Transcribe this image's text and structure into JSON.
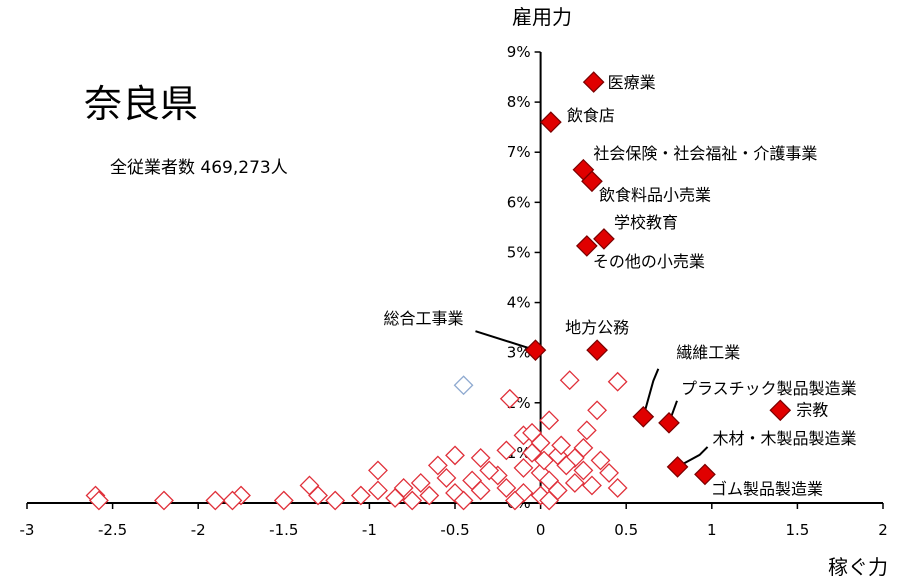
{
  "chart_data": {
    "type": "scatter",
    "title": "奈良県",
    "subtitle": "全従業者数 469,273人",
    "xlabel": "稼ぐ力",
    "ylabel": "雇用力",
    "xlim": [
      -3,
      2
    ],
    "ylim": [
      0,
      9
    ],
    "x_ticks": [
      "-3",
      "-2.5",
      "-2",
      "-1.5",
      "-1",
      "-0.5",
      "0",
      "0.5",
      "1",
      "1.5",
      "2"
    ],
    "x_tick_values": [
      -3,
      -2.5,
      -2,
      -1.5,
      -1,
      -0.5,
      0,
      0.5,
      1,
      1.5,
      2
    ],
    "y_ticks": [
      "0%",
      "1%",
      "2%",
      "3%",
      "4%",
      "5%",
      "6%",
      "7%",
      "8%",
      "9%"
    ],
    "y_tick_values": [
      0,
      1,
      2,
      3,
      4,
      5,
      6,
      7,
      8,
      9
    ],
    "grid": false,
    "colors": {
      "highlight": "#e00000",
      "highlight_edge": "#7a0000",
      "other_edge": "#e0303a",
      "other_alt_edge": "#8faad0"
    },
    "highlighted": [
      {
        "label": "医療業",
        "x": 0.31,
        "y": 8.4
      },
      {
        "label": "飲食店",
        "x": 0.06,
        "y": 7.6
      },
      {
        "label": "社会保険・社会福祉・介護事業",
        "x": 0.25,
        "y": 6.65
      },
      {
        "label": "飲食料品小売業",
        "x": 0.3,
        "y": 6.42
      },
      {
        "label": "学校教育",
        "x": 0.37,
        "y": 5.27
      },
      {
        "label": "その他の小売業",
        "x": 0.27,
        "y": 5.13
      },
      {
        "label": "総合工事業",
        "x": -0.03,
        "y": 3.05
      },
      {
        "label": "地方公務",
        "x": 0.33,
        "y": 3.05
      },
      {
        "label": "繊維工業",
        "x": 0.6,
        "y": 1.72
      },
      {
        "label": "プラスチック製品製造業",
        "x": 0.75,
        "y": 1.6
      },
      {
        "label": "宗教",
        "x": 1.4,
        "y": 1.85
      },
      {
        "label": "木材・木製品製造業",
        "x": 0.8,
        "y": 0.72
      },
      {
        "label": "ゴム製品製造業",
        "x": 0.96,
        "y": 0.57
      }
    ],
    "others": [
      {
        "x": -0.45,
        "y": 2.35,
        "alt": true
      },
      {
        "x": 0.17,
        "y": 2.45
      },
      {
        "x": 0.45,
        "y": 2.42
      },
      {
        "x": -0.18,
        "y": 2.08
      },
      {
        "x": 0.33,
        "y": 1.85
      },
      {
        "x": 0.05,
        "y": 1.65
      },
      {
        "x": 0.27,
        "y": 1.45
      },
      {
        "x": -0.1,
        "y": 1.35
      },
      {
        "x": 0.0,
        "y": 1.2
      },
      {
        "x": -0.2,
        "y": 1.05
      },
      {
        "x": -0.05,
        "y": 1.0
      },
      {
        "x": 0.1,
        "y": 0.95
      },
      {
        "x": 0.2,
        "y": 0.9
      },
      {
        "x": 0.35,
        "y": 0.85
      },
      {
        "x": -0.35,
        "y": 0.9
      },
      {
        "x": -0.5,
        "y": 0.95
      },
      {
        "x": -0.6,
        "y": 0.75
      },
      {
        "x": -0.1,
        "y": 0.7
      },
      {
        "x": 0.0,
        "y": 0.6
      },
      {
        "x": 0.15,
        "y": 0.75
      },
      {
        "x": 0.25,
        "y": 0.65
      },
      {
        "x": 0.4,
        "y": 0.6
      },
      {
        "x": 0.05,
        "y": 0.45
      },
      {
        "x": -0.25,
        "y": 0.55
      },
      {
        "x": -0.4,
        "y": 0.45
      },
      {
        "x": -0.55,
        "y": 0.5
      },
      {
        "x": -0.7,
        "y": 0.4
      },
      {
        "x": -0.8,
        "y": 0.3
      },
      {
        "x": -0.95,
        "y": 0.65
      },
      {
        "x": -0.95,
        "y": 0.25
      },
      {
        "x": -1.05,
        "y": 0.15
      },
      {
        "x": -0.85,
        "y": 0.1
      },
      {
        "x": -0.65,
        "y": 0.15
      },
      {
        "x": -0.5,
        "y": 0.2
      },
      {
        "x": -0.35,
        "y": 0.25
      },
      {
        "x": -0.2,
        "y": 0.3
      },
      {
        "x": -0.1,
        "y": 0.2
      },
      {
        "x": 0.0,
        "y": 0.15
      },
      {
        "x": 0.1,
        "y": 0.25
      },
      {
        "x": 0.2,
        "y": 0.4
      },
      {
        "x": 0.3,
        "y": 0.35
      },
      {
        "x": 0.45,
        "y": 0.3
      },
      {
        "x": 0.05,
        "y": 0.05
      },
      {
        "x": -0.15,
        "y": 0.05
      },
      {
        "x": -0.45,
        "y": 0.05
      },
      {
        "x": -0.75,
        "y": 0.05
      },
      {
        "x": -1.2,
        "y": 0.05
      },
      {
        "x": -1.3,
        "y": 0.15
      },
      {
        "x": -1.35,
        "y": 0.35
      },
      {
        "x": -1.5,
        "y": 0.05
      },
      {
        "x": -1.75,
        "y": 0.15
      },
      {
        "x": -1.8,
        "y": 0.05
      },
      {
        "x": -1.9,
        "y": 0.05
      },
      {
        "x": -2.2,
        "y": 0.05
      },
      {
        "x": -2.6,
        "y": 0.15
      },
      {
        "x": -2.58,
        "y": 0.05
      },
      {
        "x": 0.12,
        "y": 1.15
      },
      {
        "x": -0.05,
        "y": 1.4
      },
      {
        "x": 0.25,
        "y": 1.1
      },
      {
        "x": -0.3,
        "y": 0.65
      },
      {
        "x": 0.02,
        "y": 0.85
      }
    ]
  }
}
